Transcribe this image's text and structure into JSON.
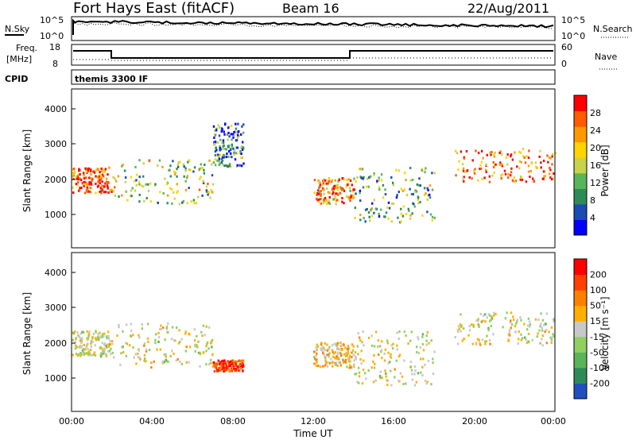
{
  "header": {
    "station": "Fort Hays East (fitACF)",
    "beam": "Beam 16",
    "date": "22/Aug/2011"
  },
  "top_panels": {
    "nsky_label": "N.Sky",
    "nsearch_label": "N.Search",
    "freq_label": "Freq.",
    "freq_unit": "[MHz]",
    "nave_label": "Nave",
    "cpid_label": "CPID",
    "cpid_text": "themis 3300 IF",
    "noise_ticks": [
      "10^5",
      "10^0"
    ],
    "freq_ticks": [
      "18",
      "8"
    ],
    "nave_ticks": [
      "60",
      "0"
    ]
  },
  "chart_data": [
    {
      "type": "heatmap",
      "title": "",
      "xlabel": "Time UT",
      "ylabel": "Slant Range [km]",
      "xlim": [
        0,
        24
      ],
      "ylim": [
        180,
        4500
      ],
      "x_ticks": [
        "00:00",
        "04:00",
        "08:00",
        "12:00",
        "16:00",
        "20:00",
        "00:00"
      ],
      "y_ticks": [
        "1000",
        "2000",
        "3000",
        "4000"
      ],
      "colorbar": {
        "label": "Power [dB]",
        "ticks": [
          "28",
          "24",
          "20",
          "16",
          "12",
          "8",
          "4"
        ],
        "colors": [
          "#0000ff",
          "#1c4bb4",
          "#2e8b57",
          "#5ab45a",
          "#c8d24a",
          "#ffd400",
          "#ff9900",
          "#ff5a00",
          "#ff0000"
        ],
        "range": [
          0,
          30
        ]
      },
      "features": [
        {
          "t": [
            0.0,
            2.0
          ],
          "range_km": [
            1700,
            2400
          ],
          "value_db": 26
        },
        {
          "t": [
            2.0,
            7.0
          ],
          "range_km": [
            1400,
            2600
          ],
          "value_db": 14
        },
        {
          "t": [
            7.0,
            8.5
          ],
          "range_km": [
            2400,
            3600
          ],
          "value_db": 8
        },
        {
          "t": [
            12.0,
            14.0
          ],
          "range_km": [
            1400,
            2100
          ],
          "value_db": 22
        },
        {
          "t": [
            14.0,
            18.0
          ],
          "range_km": [
            900,
            2400
          ],
          "value_db": 12
        },
        {
          "t": [
            19.0,
            24.0
          ],
          "range_km": [
            2000,
            2900
          ],
          "value_db": 24
        }
      ]
    },
    {
      "type": "heatmap",
      "title": "",
      "xlabel": "Time UT",
      "ylabel": "Slant Range [km]",
      "xlim": [
        0,
        24
      ],
      "ylim": [
        180,
        4500
      ],
      "x_ticks": [
        "00:00",
        "04:00",
        "08:00",
        "12:00",
        "16:00",
        "20:00",
        "00:00"
      ],
      "y_ticks": [
        "1000",
        "2000",
        "3000",
        "4000"
      ],
      "colorbar": {
        "label": "Velocity [m s⁻¹]",
        "ticks": [
          "200",
          "100",
          "50",
          "15",
          "-15",
          "-50",
          "-100",
          "-200"
        ],
        "colors": [
          "#2050c0",
          "#2e8b57",
          "#5ab45a",
          "#8fd060",
          "#c8c8c8",
          "#ffb000",
          "#ff8000",
          "#ff4000",
          "#ff0000"
        ],
        "range": [
          -250,
          250
        ]
      },
      "features": [
        {
          "t": [
            0.0,
            2.0
          ],
          "range_km": [
            1700,
            2400
          ],
          "value_ms": 0
        },
        {
          "t": [
            2.0,
            7.0
          ],
          "range_km": [
            1400,
            2600
          ],
          "value_ms": 0
        },
        {
          "t": [
            7.0,
            8.5
          ],
          "range_km": [
            1300,
            1600
          ],
          "value_ms": 180
        },
        {
          "t": [
            12.0,
            14.0
          ],
          "range_km": [
            1400,
            2100
          ],
          "value_ms": 40
        },
        {
          "t": [
            14.0,
            18.0
          ],
          "range_km": [
            900,
            2400
          ],
          "value_ms": 0
        },
        {
          "t": [
            19.0,
            24.0
          ],
          "range_km": [
            2000,
            2900
          ],
          "value_ms": 0
        }
      ]
    }
  ]
}
